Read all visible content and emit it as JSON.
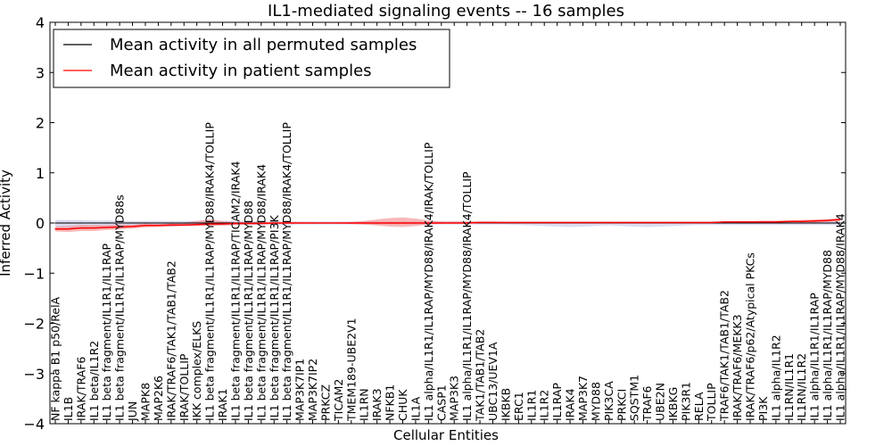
{
  "chart_data": {
    "type": "line",
    "title": "IL1-mediated signaling events -- 16 samples",
    "xlabel": "Cellular Entities",
    "ylabel": "Inferred Activity",
    "ylim": [
      -4,
      4
    ],
    "yticks": [
      -4,
      -3,
      -2,
      -1,
      0,
      1,
      2,
      3,
      4
    ],
    "ytick_labels": [
      "−4",
      "−3",
      "−2",
      "−1",
      "0",
      "1",
      "2",
      "3",
      "4"
    ],
    "grid": false,
    "legend_position": "top-left",
    "categories": [
      "NF kappa B1 p50/RelA",
      "IL1B",
      "IRAK/TRAF6",
      "IL1 beta/IL1R2",
      "IL1 beta fragment/IL1R1/IL1RAP",
      "IL1 beta fragment/IL1R1/IL1RAP/MYD88s",
      "JUN",
      "MAPK8",
      "MAP2K6",
      "IRAK/TRAF6/TAK1/TAB1/TAB2",
      "IRAK/TOLLIP",
      "IKK complex/ELKS",
      "IL1 beta fragment/IL1R1/IL1RAP/MYD88/IRAK4/TOLLIP",
      "IRAK1",
      "IL1 beta fragment/IL1R1/IL1RAP/TICAM2/IRAK4",
      "IL1 beta fragment/IL1R1/IL1RAP/MYD88",
      "IL1 beta fragment/IL1R1/IL1RAP/MYD88/IRAK4",
      "IL1 beta fragment/IL1R1/IL1RAP/PI3K",
      "IL1 beta fragment/IL1R1/IL1RAP/MYD88/IRAK4/TOLLIP",
      "MAP3K7IP1",
      "MAP3K7IP2",
      "PRKCZ",
      "TICAM2",
      "TMEM189-UBE2V1",
      "IL1RN",
      "IRAK3",
      "NFKB1",
      "CHUK",
      "IL1A",
      "IL1 alpha/IL1R1/IL1RAP/MYD88/IRAK4/IRAK/TOLLIP",
      "CASP1",
      "MAP3K3",
      "IL1 alpha/IL1R1/IL1RAP/MYD88/IRAK4/TOLLIP",
      "TAK1/TAB1/TAB2",
      "UBC13/UEV1A",
      "IKBKB",
      "ERC1",
      "IL1R1",
      "IL1R2",
      "IL1RAP",
      "IRAK4",
      "MAP3K7",
      "MYD88",
      "PIK3CA",
      "PRKCI",
      "SQSTM1",
      "TRAF6",
      "UBE2N",
      "IKBKG",
      "PIK3R1",
      "RELA",
      "TOLLIP",
      "TRAF6/TAK1/TAB1/TAB2",
      "IRAK/TRAF6/MEKK3",
      "IRAK/TRAF6/p62/Atypical PKCs",
      "PI3K",
      "IL1 alpha/IL1R2",
      "IL1RN/IL1R1",
      "IL1RN/IL1R2",
      "IL1 alpha/IL1R1/IL1RAP",
      "IL1 alpha/IL1R1/IL1RAP/MYD88",
      "IL1 alpha/IL1R1/IL1RAP/MYD88/IRAK4"
    ],
    "series": [
      {
        "name": "Mean activity in all permuted samples",
        "color": "#000000",
        "values": [
          0,
          0,
          0,
          0,
          0,
          0,
          0,
          0,
          0,
          0,
          0,
          0,
          0,
          0,
          0,
          0,
          0,
          0,
          0,
          0,
          0,
          0,
          0,
          0,
          0,
          0,
          0,
          0,
          0,
          0,
          0,
          0,
          0,
          0,
          0,
          0,
          0,
          0,
          0,
          0,
          0,
          0,
          0,
          0,
          0,
          0,
          0,
          0,
          0,
          0,
          0,
          0,
          0,
          0,
          0,
          0,
          0,
          0,
          0,
          0,
          0,
          0
        ],
        "band_lower": [
          -0.1,
          -0.1,
          -0.1,
          -0.09,
          -0.08,
          -0.07,
          -0.06,
          -0.05,
          -0.06,
          -0.07,
          -0.06,
          -0.05,
          -0.05,
          -0.05,
          -0.04,
          -0.04,
          -0.04,
          -0.04,
          -0.04,
          -0.03,
          -0.03,
          -0.03,
          -0.03,
          -0.03,
          -0.03,
          -0.03,
          -0.03,
          -0.03,
          -0.03,
          -0.03,
          -0.03,
          -0.03,
          -0.03,
          -0.03,
          -0.03,
          -0.03,
          -0.04,
          -0.05,
          -0.06,
          -0.07,
          -0.08,
          -0.07,
          -0.06,
          -0.05,
          -0.06,
          -0.07,
          -0.08,
          -0.07,
          -0.06,
          -0.05,
          -0.04,
          -0.04,
          -0.04,
          -0.04,
          -0.04,
          -0.04,
          -0.04,
          -0.04,
          -0.04,
          -0.04,
          -0.04,
          -0.04
        ],
        "band_upper": [
          0.06,
          0.06,
          0.06,
          0.05,
          0.05,
          0.04,
          0.04,
          0.04,
          0.04,
          0.04,
          0.04,
          0.04,
          0.04,
          0.04,
          0.04,
          0.03,
          0.03,
          0.03,
          0.03,
          0.03,
          0.03,
          0.03,
          0.03,
          0.03,
          0.03,
          0.03,
          0.03,
          0.03,
          0.03,
          0.03,
          0.03,
          0.03,
          0.03,
          0.03,
          0.03,
          0.03,
          0.03,
          0.03,
          0.03,
          0.03,
          0.03,
          0.03,
          0.03,
          0.03,
          0.03,
          0.03,
          0.03,
          0.03,
          0.03,
          0.03,
          0.03,
          0.03,
          0.03,
          0.03,
          0.03,
          0.03,
          0.03,
          0.03,
          0.03,
          0.03,
          0.03,
          0.03
        ],
        "band_color": "#9c9cd6"
      },
      {
        "name": "Mean activity in patient samples",
        "color": "#ff0000",
        "values": [
          -0.12,
          -0.12,
          -0.1,
          -0.1,
          -0.09,
          -0.08,
          -0.07,
          -0.05,
          -0.05,
          -0.04,
          -0.04,
          -0.03,
          -0.02,
          -0.02,
          -0.01,
          -0.01,
          -0.01,
          0,
          0,
          0,
          0,
          0,
          0,
          0,
          0,
          0,
          0,
          0,
          0,
          0,
          0,
          0,
          0,
          0.01,
          0.01,
          0.01,
          0.01,
          0.01,
          0.01,
          0.01,
          0.01,
          0.01,
          0.01,
          0.01,
          0.01,
          0.01,
          0.01,
          0.01,
          0.01,
          0.01,
          0.01,
          0.01,
          0.02,
          0.02,
          0.02,
          0.02,
          0.02,
          0.03,
          0.03,
          0.04,
          0.05,
          0.07
        ],
        "band_lower": [
          -0.17,
          -0.18,
          -0.16,
          -0.16,
          -0.14,
          -0.13,
          -0.11,
          -0.09,
          -0.08,
          -0.07,
          -0.06,
          -0.06,
          -0.06,
          -0.05,
          -0.04,
          -0.03,
          -0.03,
          -0.02,
          -0.02,
          -0.01,
          -0.01,
          -0.01,
          -0.01,
          -0.02,
          -0.03,
          -0.05,
          -0.07,
          -0.08,
          -0.06,
          -0.03,
          -0.01,
          -0.01,
          0,
          0,
          0,
          0,
          0,
          0,
          0,
          0,
          0,
          0,
          0,
          0,
          0,
          0,
          0,
          0,
          0,
          0,
          0,
          0,
          0,
          0,
          0,
          0,
          0,
          0,
          0.01,
          0.01,
          0.02,
          0.03
        ],
        "band_upper": [
          -0.07,
          -0.06,
          -0.04,
          -0.04,
          -0.04,
          -0.03,
          -0.03,
          -0.01,
          -0.02,
          -0.01,
          0.01,
          0.04,
          0.07,
          0.04,
          0.02,
          0.02,
          0.02,
          0.02,
          0.02,
          0.02,
          0.01,
          0.01,
          0.01,
          0.02,
          0.04,
          0.07,
          0.1,
          0.11,
          0.09,
          0.05,
          0.03,
          0.03,
          0.03,
          0.03,
          0.03,
          0.02,
          0.02,
          0.02,
          0.02,
          0.02,
          0.02,
          0.02,
          0.02,
          0.02,
          0.02,
          0.02,
          0.02,
          0.02,
          0.02,
          0.02,
          0.02,
          0.02,
          0.03,
          0.04,
          0.04,
          0.05,
          0.05,
          0.05,
          0.06,
          0.07,
          0.08,
          0.1
        ],
        "band_color": "#f08080"
      }
    ]
  }
}
